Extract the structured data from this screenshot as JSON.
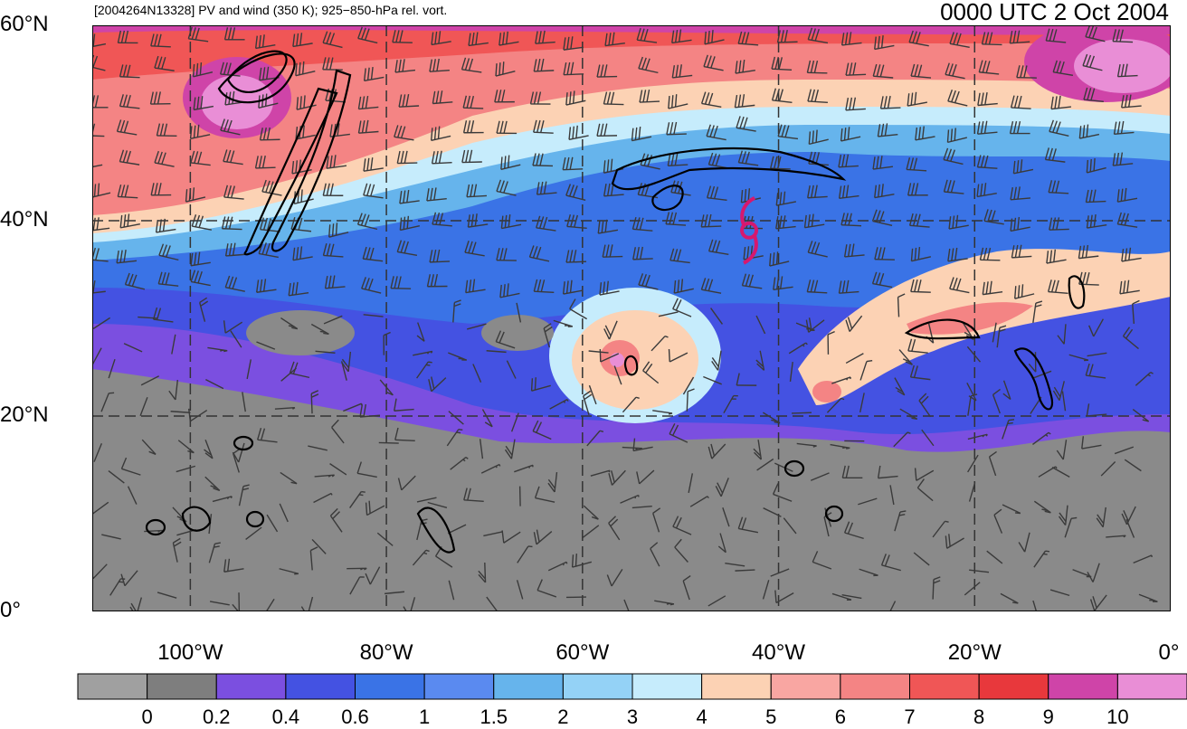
{
  "header": {
    "subtitle": "[2004264N13328] PV and wind (350 K); 925−850-hPa rel. vort.",
    "title": "0000 UTC 2 Oct 2004"
  },
  "map": {
    "lon_range": [
      -110,
      0
    ],
    "lat_range": [
      0,
      60
    ],
    "lat_labels": [
      {
        "lat": 60,
        "text": "60°N"
      },
      {
        "lat": 40,
        "text": "40°N"
      },
      {
        "lat": 20,
        "text": "20°N"
      },
      {
        "lat": 0,
        "text": "0°"
      }
    ],
    "lon_labels": [
      {
        "lon": -100,
        "text": "100°W"
      },
      {
        "lon": -80,
        "text": "80°W"
      },
      {
        "lon": -60,
        "text": "60°W"
      },
      {
        "lon": -40,
        "text": "40°W"
      },
      {
        "lon": -20,
        "text": "20°W"
      },
      {
        "lon": 0,
        "text": "0°"
      }
    ],
    "grid_lons": [
      -100,
      -80,
      -60,
      -40,
      -20
    ],
    "grid_lats": [
      20,
      40
    ],
    "storm_symbol": {
      "lon": -43,
      "lat": 39,
      "color": "#d6186e"
    }
  },
  "colorbar": {
    "colors": [
      "#a0a0a0",
      "#7e7e7e",
      "#7b4fe0",
      "#4452e2",
      "#3a73e6",
      "#5a8af0",
      "#66b4ec",
      "#94d2f6",
      "#c6ecfc",
      "#fcd2b4",
      "#f9a6a2",
      "#f48484",
      "#f05656",
      "#e8383c",
      "#cf44a8",
      "#e98ed6"
    ],
    "labels": [
      "0",
      "0.2",
      "0.4",
      "0.6",
      "1",
      "1.5",
      "2",
      "3",
      "4",
      "5",
      "6",
      "7",
      "8",
      "9",
      "10"
    ]
  }
}
